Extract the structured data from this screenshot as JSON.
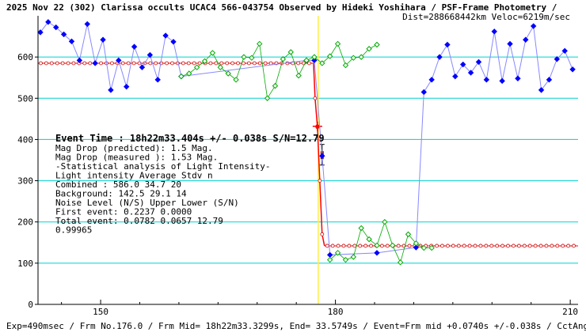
{
  "header": {
    "title": "2025 Nov 22 (302) Clarissa occults UCAC4 566-043754 Observed by Hideki Yoshihara / PSF-Frame Photometry /",
    "subtitle": "Dist=288668442km Veloc=6219m/sec"
  },
  "footer": {
    "text": "Exp=490msec / Frm No.176.0 / Frm Mid= 18h22m33.3299s, End= 33.5749s / Event=Frm mid +0.0740s +/-0.038s / CctAngle=0.0deg"
  },
  "annotations": {
    "event_time": "Event Time : 18h22m33.404s  +/- 0.038s  S/N=12.79",
    "lines": [
      "Mag Drop (predicted):  1.5   Mag.",
      "Mag Drop (measured ):  1.53  Mag.",
      "-Statistical analysis of Light Intensity-",
      "Light intensity     Average   Stdv      n",
      "  Combined  :         586.0     34.7     20",
      "  Background:         142.5     29.1     14",
      "Noise Level (N/S)   Upper     Lower    (S/N)",
      "  First event:      0.2237    0.0000",
      "  Total event:      0.0782    0.0657   12.79",
      "0.99965"
    ]
  },
  "colors": {
    "background": "#ffffff",
    "grid": "#00d0d0",
    "event_line": "#ffee44",
    "blue_series": "#0000ff",
    "blue_line": "#8888ff",
    "green_series": "#00aa00",
    "model_line": "#ff0000",
    "model_marker": "#cc0000",
    "error_bar": "#000000",
    "axis": "#000000",
    "text": "#000000"
  },
  "chart_data": {
    "type": "line",
    "xlim": [
      142,
      211
    ],
    "ylim": [
      0,
      700
    ],
    "x_ticks": [
      150,
      180,
      210
    ],
    "y_ticks": [
      0,
      100,
      200,
      300,
      400,
      500,
      600
    ],
    "grid": "horizontal",
    "event_x": 177.8,
    "series": [
      {
        "style": "blue",
        "points": [
          [
            142.3,
            660
          ],
          [
            143.3,
            685
          ],
          [
            144.3,
            672
          ],
          [
            145.3,
            655
          ],
          [
            146.3,
            638
          ],
          [
            147.3,
            592
          ],
          [
            148.3,
            680
          ],
          [
            149.3,
            585
          ],
          [
            150.3,
            642
          ],
          [
            151.3,
            520
          ],
          [
            152.3,
            592
          ],
          [
            153.3,
            528
          ],
          [
            154.3,
            625
          ],
          [
            155.3,
            575
          ],
          [
            156.3,
            605
          ],
          [
            157.3,
            545
          ],
          [
            158.3,
            652
          ],
          [
            159.3,
            637
          ],
          [
            160.3,
            553
          ],
          [
            176.3,
            592
          ],
          [
            177.3,
            592
          ],
          [
            178.3,
            360
          ],
          [
            179.3,
            120
          ],
          [
            185.3,
            125
          ],
          [
            190.3,
            138
          ],
          [
            191.3,
            515
          ],
          [
            192.3,
            545
          ],
          [
            193.3,
            600
          ],
          [
            194.3,
            630
          ],
          [
            195.3,
            553
          ],
          [
            196.3,
            582
          ],
          [
            197.3,
            562
          ],
          [
            198.3,
            588
          ],
          [
            199.3,
            545
          ],
          [
            200.3,
            662
          ],
          [
            201.3,
            542
          ],
          [
            202.3,
            632
          ],
          [
            203.3,
            548
          ],
          [
            204.3,
            642
          ],
          [
            205.3,
            675
          ],
          [
            206.3,
            520
          ],
          [
            207.3,
            545
          ],
          [
            208.3,
            595
          ],
          [
            209.3,
            615
          ],
          [
            210.3,
            570
          ]
        ]
      },
      {
        "style": "green",
        "points": [
          [
            160.3,
            553
          ],
          [
            161.3,
            560
          ],
          [
            162.3,
            575
          ],
          [
            163.3,
            590
          ],
          [
            164.3,
            610
          ],
          [
            165.3,
            575
          ],
          [
            166.3,
            560
          ],
          [
            167.3,
            545
          ],
          [
            168.3,
            600
          ],
          [
            169.3,
            598
          ],
          [
            170.3,
            632
          ],
          [
            171.3,
            500
          ],
          [
            172.3,
            530
          ],
          [
            173.3,
            595
          ],
          [
            174.3,
            612
          ],
          [
            175.3,
            555
          ],
          [
            176.3,
            592
          ],
          [
            177.3,
            600
          ],
          [
            178.3,
            585
          ],
          [
            179.3,
            602
          ],
          [
            180.3,
            632
          ],
          [
            181.3,
            580
          ],
          [
            182.3,
            598
          ],
          [
            183.3,
            600
          ],
          [
            184.3,
            620
          ],
          [
            185.3,
            630
          ]
        ]
      },
      {
        "style": "green",
        "points": [
          [
            179.3,
            108
          ],
          [
            180.3,
            125
          ],
          [
            181.3,
            108
          ],
          [
            182.3,
            115
          ],
          [
            183.3,
            185
          ],
          [
            184.3,
            158
          ],
          [
            185.3,
            143
          ],
          [
            186.3,
            200
          ],
          [
            187.3,
            143
          ],
          [
            188.3,
            102
          ],
          [
            189.3,
            170
          ],
          [
            190.3,
            148
          ],
          [
            191.3,
            137
          ],
          [
            192.3,
            137
          ]
        ]
      }
    ],
    "model": {
      "levels": [
        {
          "from": 142,
          "to": 177.2,
          "y": 585
        },
        {
          "from": 178.6,
          "to": 211,
          "y": 142
        }
      ],
      "transition": [
        [
          177.2,
          585
        ],
        [
          177.4,
          500
        ],
        [
          177.7,
          430
        ],
        [
          178.0,
          300
        ],
        [
          178.3,
          170
        ],
        [
          178.6,
          142
        ]
      ],
      "event_marker": {
        "x": 177.7,
        "y": 432
      },
      "error_bar": {
        "x": 178.3,
        "y": 362,
        "low": 338,
        "high": 388
      }
    }
  }
}
